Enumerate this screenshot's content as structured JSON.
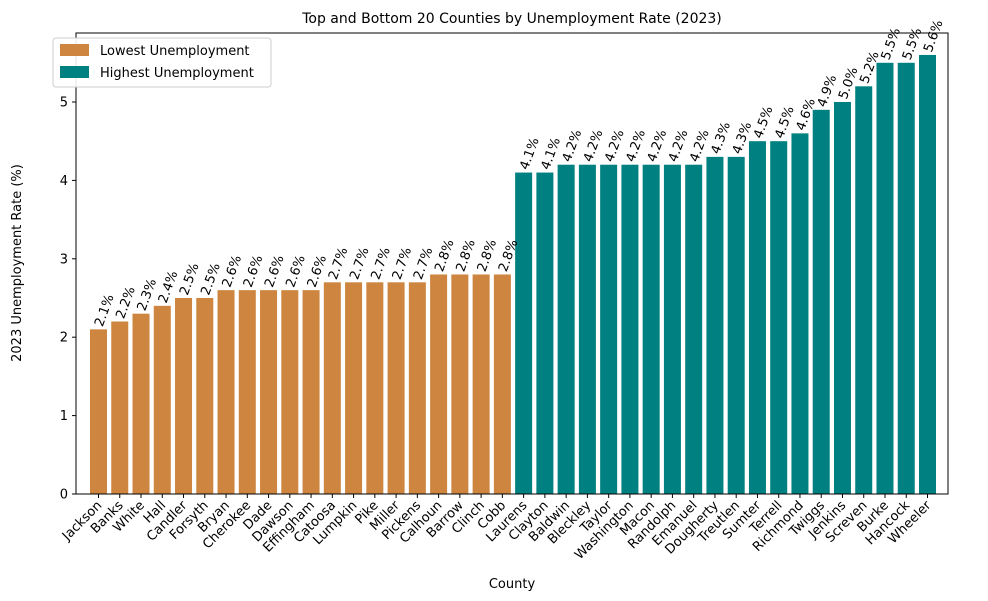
{
  "chart_data": {
    "type": "bar",
    "title": "Top and Bottom 20 Counties by Unemployment Rate (2023)",
    "xlabel": "County",
    "ylabel": "2023 Unemployment Rate (%)",
    "ylim": [
      0,
      5.88
    ],
    "yticks": [
      0,
      1,
      2,
      3,
      4,
      5
    ],
    "grid": false,
    "legend_position": "top-left",
    "categories": [
      "Jackson",
      "Banks",
      "White",
      "Hall",
      "Candler",
      "Forsyth",
      "Bryan",
      "Cherokee",
      "Dade",
      "Dawson",
      "Effingham",
      "Catoosa",
      "Lumpkin",
      "Pike",
      "Miller",
      "Pickens",
      "Calhoun",
      "Barrow",
      "Clinch",
      "Cobb",
      "Laurens",
      "Clayton",
      "Baldwin",
      "Bleckley",
      "Taylor",
      "Washington",
      "Macon",
      "Randolph",
      "Emanuel",
      "Dougherty",
      "Treutlen",
      "Sumter",
      "Terrell",
      "Richmond",
      "Twiggs",
      "Jenkins",
      "Screven",
      "Burke",
      "Hancock",
      "Wheeler"
    ],
    "values": [
      2.1,
      2.2,
      2.3,
      2.4,
      2.5,
      2.5,
      2.6,
      2.6,
      2.6,
      2.6,
      2.6,
      2.7,
      2.7,
      2.7,
      2.7,
      2.7,
      2.8,
      2.8,
      2.8,
      2.8,
      4.1,
      4.1,
      4.2,
      4.2,
      4.2,
      4.2,
      4.2,
      4.2,
      4.2,
      4.3,
      4.3,
      4.5,
      4.5,
      4.6,
      4.9,
      5.0,
      5.2,
      5.5,
      5.5,
      5.6
    ],
    "data_labels": [
      "2.1%",
      "2.2%",
      "2.3%",
      "2.4%",
      "2.5%",
      "2.5%",
      "2.6%",
      "2.6%",
      "2.6%",
      "2.6%",
      "2.6%",
      "2.7%",
      "2.7%",
      "2.7%",
      "2.7%",
      "2.7%",
      "2.8%",
      "2.8%",
      "2.8%",
      "2.8%",
      "4.1%",
      "4.1%",
      "4.2%",
      "4.2%",
      "4.2%",
      "4.2%",
      "4.2%",
      "4.2%",
      "4.2%",
      "4.3%",
      "4.3%",
      "4.5%",
      "4.5%",
      "4.6%",
      "4.9%",
      "5.0%",
      "5.2%",
      "5.5%",
      "5.5%",
      "5.6%"
    ],
    "series": [
      {
        "name": "Lowest Unemployment",
        "color": "#cd853f",
        "range": [
          0,
          20
        ]
      },
      {
        "name": "Highest Unemployment",
        "color": "#008080",
        "range": [
          20,
          40
        ]
      }
    ]
  }
}
